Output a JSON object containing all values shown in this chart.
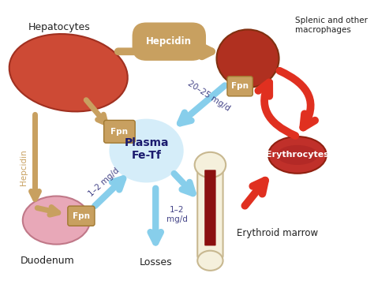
{
  "labels": {
    "hepatocytes": "Hepatocytes",
    "splenic": "Splenic and other\nmacrophages",
    "erythrocytes": "Erythrocytes",
    "erythroid_marrow": "Erythroid marrow",
    "duodenum": "Duodenum",
    "losses": "Losses",
    "plasma": "Plasma\nFe-Tf",
    "hepcidin_arrow": "Hepcidin",
    "hepcidin_left": "Hepcidin",
    "fpn_liver": "Fpn",
    "fpn_duodenum": "Fpn",
    "fpn_spleen": "Fpn",
    "dose1": "20–25 mg/d",
    "dose2": "1–2 mg/d",
    "dose3": "1–2\nmg/d"
  },
  "colors": {
    "bg_color": "#ffffff",
    "liver_fill": "#cd4a35",
    "liver_edge": "#a03020",
    "duodenum_fill": "#e8a8b8",
    "duodenum_edge": "#c07888",
    "spleen_fill": "#b03020",
    "spleen_edge": "#803010",
    "erythrocytes_fill": "#c0302a",
    "erythrocytes_edge": "#902010",
    "plasma_glow": "#c8e8f8",
    "arrow_tan": "#c8a060",
    "arrow_blue": "#87ceeb",
    "arrow_red": "#e03020",
    "fpn_color": "#c8a060",
    "fpn_edge": "#a07830",
    "bone_fill": "#f5f0dc",
    "bone_edge": "#c8b890",
    "marrow_fill": "#8b1010",
    "text_dark": "#222222",
    "text_white": "#ffffff",
    "plasma_text": "#1a1a6e",
    "dose_text": "#444488"
  }
}
